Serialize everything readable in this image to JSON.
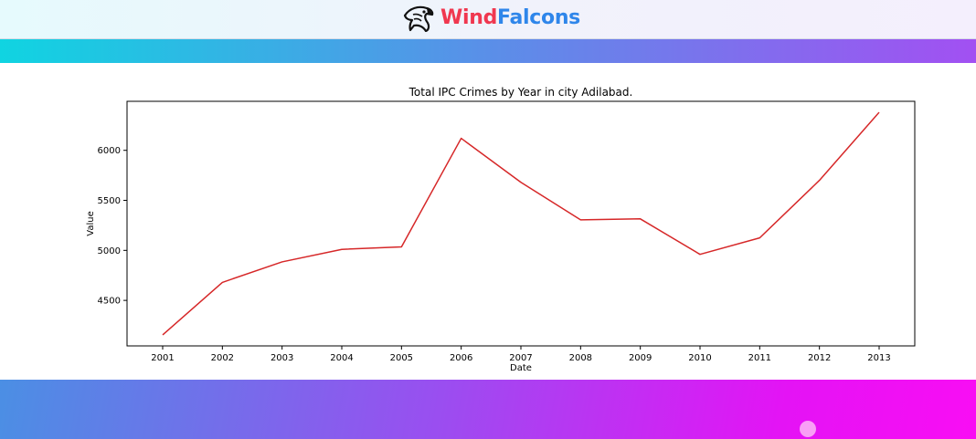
{
  "header": {
    "brand_part1": "Wind",
    "brand_part2": "Falcons",
    "logo_icon": "falcon-head-icon",
    "brand_colors": {
      "wind": "#f0374f",
      "falcons": "#2f86ea"
    }
  },
  "chart_data": {
    "type": "line",
    "title": "Total IPC Crimes by Year in city Adilabad.",
    "xlabel": "Date",
    "ylabel": "Value",
    "x": [
      "2001",
      "2002",
      "2003",
      "2004",
      "2005",
      "2006",
      "2007",
      "2008",
      "2009",
      "2010",
      "2011",
      "2012",
      "2013"
    ],
    "series": [
      {
        "values": [
          4155,
          4680,
          4885,
          5010,
          5035,
          6120,
          5680,
          5305,
          5315,
          4960,
          5125,
          5700,
          6380
        ],
        "color": "#d62728"
      }
    ],
    "yticks": [
      4500,
      5000,
      5500,
      6000
    ],
    "ylim": [
      4045,
      6490
    ],
    "grid": false
  }
}
